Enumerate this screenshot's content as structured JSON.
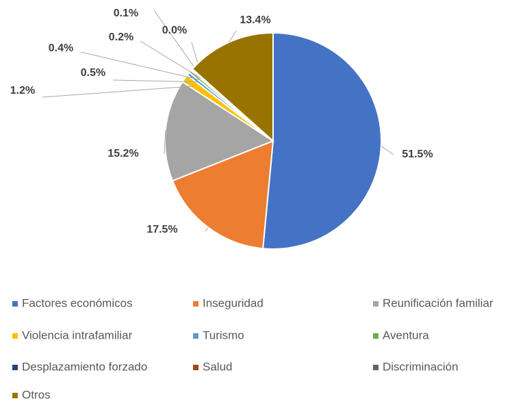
{
  "chart_data": {
    "type": "pie",
    "categories": [
      "Factores económicos",
      "Inseguridad",
      "Reunificación familiar",
      "Violencia intrafamiliar",
      "Turismo",
      "Aventura",
      "Desplazamiento forzado",
      "Salud",
      "Discriminación",
      "Otros"
    ],
    "values": [
      51.5,
      17.5,
      15.2,
      1.2,
      0.5,
      0.4,
      0.2,
      0.1,
      0.0,
      13.4
    ],
    "value_labels": [
      "51.5%",
      "17.5%",
      "15.2%",
      "1.2%",
      "0.5%",
      "0.4%",
      "0.2%",
      "0.1%",
      "0.0%",
      "13.4%"
    ],
    "colors": [
      "#4472c4",
      "#ed7d31",
      "#a5a5a5",
      "#ffc000",
      "#5b9bd5",
      "#70ad47",
      "#264478",
      "#9e480e",
      "#636363",
      "#997300"
    ],
    "legend": "bottom"
  }
}
